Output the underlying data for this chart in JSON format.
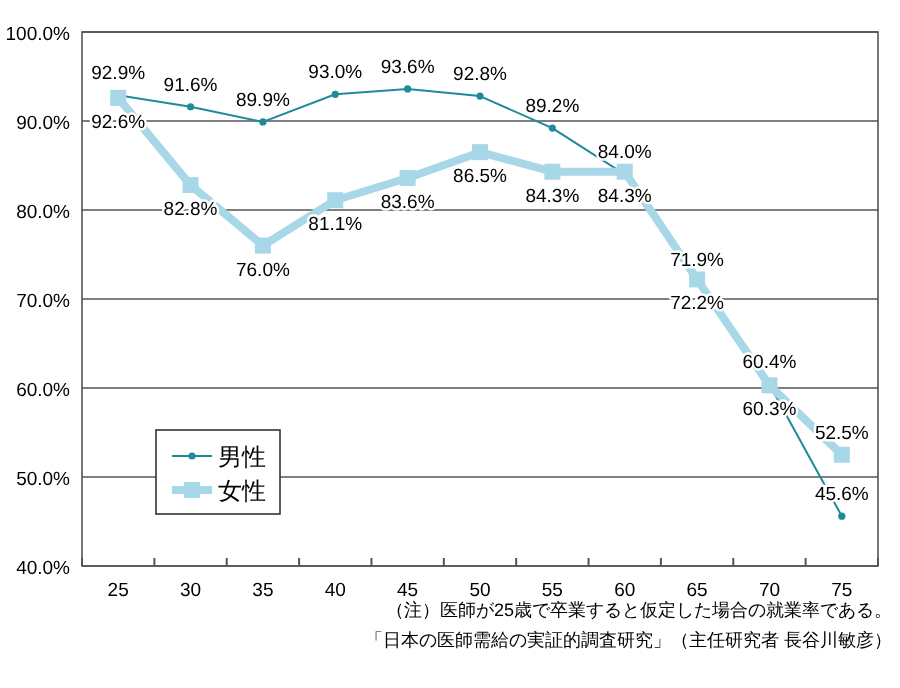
{
  "chart_data": {
    "type": "line",
    "categories": [
      "25",
      "30",
      "35",
      "40",
      "45",
      "50",
      "55",
      "60",
      "65",
      "70",
      "75"
    ],
    "series": [
      {
        "name": "男性",
        "color": "#1f8a9a",
        "marker": "circle",
        "values": [
          92.9,
          91.6,
          89.9,
          93.0,
          93.6,
          92.8,
          89.2,
          84.0,
          71.9,
          60.4,
          45.6
        ],
        "value_labels": [
          "92.9%",
          "91.6%",
          "89.9%",
          "93.0%",
          "93.6%",
          "92.8%",
          "89.2%",
          "84.0%",
          "71.9%",
          "60.4%",
          "45.6%"
        ]
      },
      {
        "name": "女性",
        "color": "#a8d8e8",
        "marker": "square",
        "values": [
          92.6,
          82.8,
          76.0,
          81.1,
          83.6,
          86.5,
          84.3,
          84.3,
          72.2,
          60.3,
          52.5
        ],
        "value_labels": [
          "92.6%",
          "82.8%",
          "76.0%",
          "81.1%",
          "83.6%",
          "86.5%",
          "84.3%",
          "84.3%",
          "72.2%",
          "60.3%",
          "52.5%"
        ]
      }
    ],
    "ylim": [
      40,
      100
    ],
    "yticks": [
      {
        "value": 40,
        "label": "40.0%"
      },
      {
        "value": 50,
        "label": "50.0%"
      },
      {
        "value": 60,
        "label": "60.0%"
      },
      {
        "value": 70,
        "label": "70.0%"
      },
      {
        "value": 80,
        "label": "80.0%"
      },
      {
        "value": 90,
        "label": "90.0%"
      },
      {
        "value": 100,
        "label": "100.0%"
      }
    ],
    "grid": "y",
    "legend": "bottom left",
    "line_style": "solid",
    "annotations": [
      "（注）医師が25歳で卒業すると仮定した場合の就業率である。",
      "「日本の医師需給の実証的調査研究」（主任研究者 長谷川敏彦）"
    ]
  }
}
